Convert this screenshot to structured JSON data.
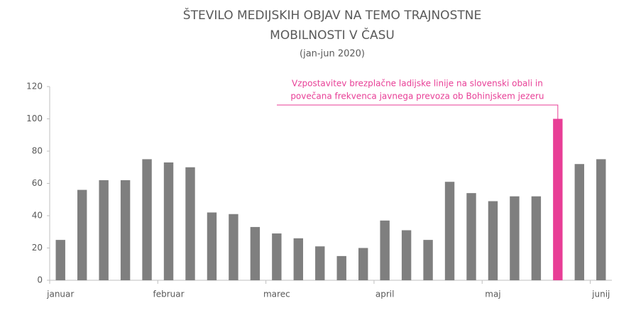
{
  "chart_data": {
    "type": "bar",
    "title": [
      "ŠTEVILO MEDIJSKIH OBJAV NA TEMO TRAJNOSTNE",
      "MOBILNOSTI V ČASU"
    ],
    "subtitle": "(jan-jun 2020)",
    "categories": [
      "januar",
      null,
      null,
      null,
      null,
      "februar",
      null,
      null,
      null,
      null,
      "marec",
      null,
      null,
      null,
      null,
      "april",
      null,
      null,
      null,
      null,
      "maj",
      null,
      null,
      null,
      null,
      "junij"
    ],
    "values": [
      25,
      56,
      62,
      62,
      75,
      73,
      70,
      42,
      41,
      33,
      29,
      26,
      21,
      15,
      20,
      37,
      31,
      25,
      61,
      54,
      49,
      52,
      52,
      100,
      72,
      75
    ],
    "color": "#7f7f7f",
    "colors": [
      "#7f7f7f",
      "#7f7f7f",
      "#7f7f7f",
      "#7f7f7f",
      "#7f7f7f",
      "#7f7f7f",
      "#7f7f7f",
      "#7f7f7f",
      "#7f7f7f",
      "#7f7f7f",
      "#7f7f7f",
      "#7f7f7f",
      "#7f7f7f",
      "#7f7f7f",
      "#7f7f7f",
      "#7f7f7f",
      "#7f7f7f",
      "#7f7f7f",
      "#7f7f7f",
      "#7f7f7f",
      "#7f7f7f",
      "#7f7f7f",
      "#7f7f7f",
      "#e83e96",
      "#7f7f7f",
      "#7f7f7f"
    ],
    "annotation": [
      "Vzpostavitev brezplačne ladijske linije na slovenski obali in",
      "povečana frekvenca javnega prevoza ob Bohinjskem jezeru"
    ],
    "ylim": [
      0,
      120
    ],
    "yticks": [
      0,
      20,
      40,
      60,
      80,
      100,
      120
    ],
    "grid": false
  }
}
